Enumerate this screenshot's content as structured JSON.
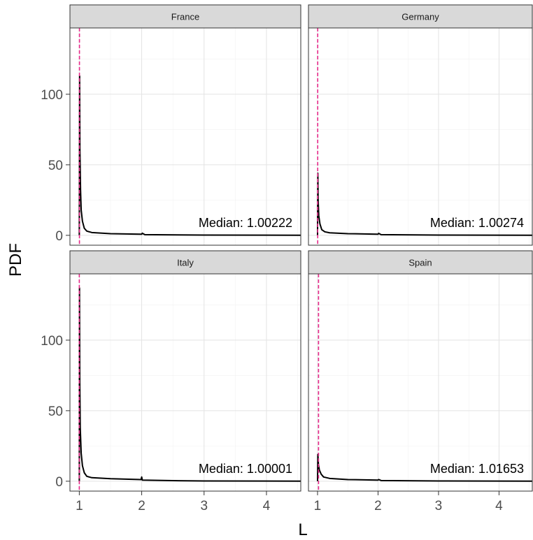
{
  "chart_data": {
    "type": "line",
    "xlabel": "L",
    "ylabel": "PDF",
    "xlim": [
      0.85,
      4.55
    ],
    "ylim": [
      -7,
      147
    ],
    "x_ticks": [
      1,
      2,
      3,
      4
    ],
    "y_ticks": [
      0,
      50,
      100
    ],
    "grid": true,
    "reference_line_color": "#e7298a",
    "panels": [
      {
        "strip": "France",
        "annotation": "Median: 1.00222",
        "median": 1.00222,
        "peak": 113,
        "curve": [
          [
            1.0,
            0
          ],
          [
            1.005,
            113
          ],
          [
            1.01,
            60
          ],
          [
            1.02,
            32
          ],
          [
            1.03,
            18
          ],
          [
            1.05,
            10
          ],
          [
            1.08,
            5
          ],
          [
            1.12,
            3
          ],
          [
            1.2,
            2
          ],
          [
            1.5,
            1.2
          ],
          [
            2.0,
            0.8
          ],
          [
            2.01,
            1.5
          ],
          [
            2.05,
            0.5
          ],
          [
            3.0,
            0.2
          ],
          [
            4.55,
            0.05
          ]
        ]
      },
      {
        "strip": "Germany",
        "annotation": "Median: 1.00274",
        "median": 1.00274,
        "peak": 44,
        "curve": [
          [
            1.0,
            0
          ],
          [
            1.005,
            44
          ],
          [
            1.01,
            25
          ],
          [
            1.02,
            14
          ],
          [
            1.04,
            8
          ],
          [
            1.07,
            4
          ],
          [
            1.12,
            2.5
          ],
          [
            1.2,
            1.8
          ],
          [
            1.5,
            1.2
          ],
          [
            2.0,
            0.8
          ],
          [
            2.01,
            1.4
          ],
          [
            2.05,
            0.5
          ],
          [
            3.0,
            0.2
          ],
          [
            4.55,
            0.05
          ]
        ]
      },
      {
        "strip": "Italy",
        "annotation": "Median: 1.00001",
        "median": 1.00001,
        "peak": 137,
        "curve": [
          [
            1.0,
            0
          ],
          [
            1.003,
            137
          ],
          [
            1.008,
            70
          ],
          [
            1.015,
            38
          ],
          [
            1.03,
            20
          ],
          [
            1.05,
            11
          ],
          [
            1.08,
            6
          ],
          [
            1.12,
            3.5
          ],
          [
            1.2,
            2.5
          ],
          [
            1.5,
            1.8
          ],
          [
            1.99,
            1.2
          ],
          [
            2.0,
            3
          ],
          [
            2.01,
            0.8
          ],
          [
            2.5,
            0.4
          ],
          [
            3.0,
            0.2
          ],
          [
            4.55,
            0.05
          ]
        ]
      },
      {
        "strip": "Spain",
        "annotation": "Median: 1.01653",
        "median": 1.01653,
        "peak": 19,
        "curve": [
          [
            1.0,
            0
          ],
          [
            1.005,
            19
          ],
          [
            1.015,
            12
          ],
          [
            1.03,
            8
          ],
          [
            1.06,
            5
          ],
          [
            1.1,
            3
          ],
          [
            1.2,
            2
          ],
          [
            1.5,
            1.2
          ],
          [
            2.0,
            0.8
          ],
          [
            2.01,
            1.2
          ],
          [
            2.05,
            0.5
          ],
          [
            3.0,
            0.2
          ],
          [
            4.55,
            0.05
          ]
        ]
      }
    ]
  }
}
